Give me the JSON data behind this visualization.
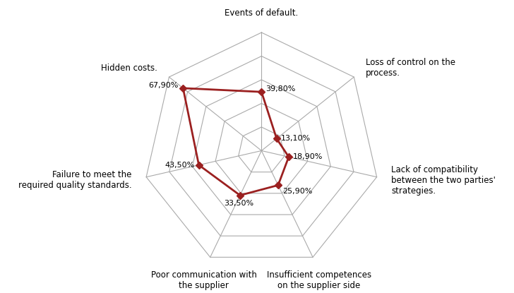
{
  "categories": [
    "Events of default.",
    "Loss of control on the\nprocess.",
    "Lack of compatibility\nbetween the two parties'\nstrategies.",
    "Insufficient competences\non the supplier side",
    "Poor communication with\nthe supplier",
    "Failure to meet the\nrequired quality standards.",
    "Hidden costs."
  ],
  "values": [
    39.8,
    13.1,
    18.9,
    25.9,
    33.5,
    43.5,
    67.9
  ],
  "value_labels": [
    "39,80%",
    "13,10%",
    "18,90%",
    "25,90%",
    "33,50%",
    "43,50%",
    "67,90%"
  ],
  "line_color": "#9B2020",
  "marker_color": "#9B2020",
  "grid_color": "#AAAAAA",
  "background_color": "#FFFFFF",
  "grid_levels": 5,
  "max_value": 80,
  "label_fontsize": 8.5,
  "value_fontsize": 8.0
}
